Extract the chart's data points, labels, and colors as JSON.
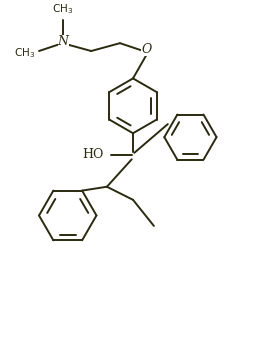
{
  "bg_color": "#ffffff",
  "line_color": "#2a2a10",
  "line_width": 1.4,
  "figsize": [
    2.66,
    3.46
  ],
  "dpi": 100,
  "xlim": [
    0,
    10
  ],
  "ylim": [
    0,
    13
  ]
}
